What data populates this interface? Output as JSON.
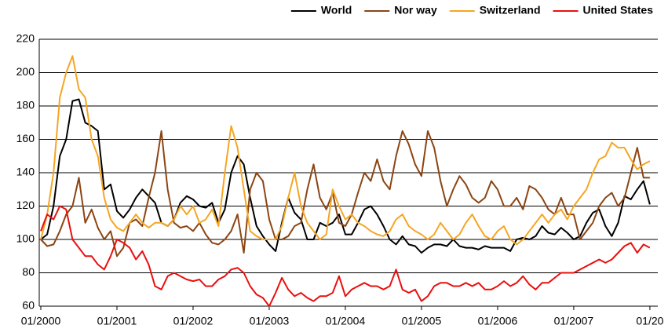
{
  "chart_data": {
    "type": "line",
    "x": [
      "2000-01",
      "2000-02",
      "2000-03",
      "2000-04",
      "2000-05",
      "2000-06",
      "2000-07",
      "2000-08",
      "2000-09",
      "2000-10",
      "2000-11",
      "2000-12",
      "2001-01",
      "2001-02",
      "2001-03",
      "2001-04",
      "2001-05",
      "2001-06",
      "2001-07",
      "2001-08",
      "2001-09",
      "2001-10",
      "2001-11",
      "2001-12",
      "2002-01",
      "2002-02",
      "2002-03",
      "2002-04",
      "2002-05",
      "2002-06",
      "2002-07",
      "2002-08",
      "2002-09",
      "2002-10",
      "2002-11",
      "2002-12",
      "2003-01",
      "2003-02",
      "2003-03",
      "2003-04",
      "2003-05",
      "2003-06",
      "2003-07",
      "2003-08",
      "2003-09",
      "2003-10",
      "2003-11",
      "2003-12",
      "2004-01",
      "2004-02",
      "2004-03",
      "2004-04",
      "2004-05",
      "2004-06",
      "2004-07",
      "2004-08",
      "2004-09",
      "2004-10",
      "2004-11",
      "2004-12",
      "2005-01",
      "2005-02",
      "2005-03",
      "2005-04",
      "2005-05",
      "2005-06",
      "2005-07",
      "2005-08",
      "2005-09",
      "2005-10",
      "2005-11",
      "2005-12",
      "2006-01",
      "2006-02",
      "2006-03",
      "2006-04",
      "2006-05",
      "2006-06",
      "2006-07",
      "2006-08",
      "2006-09",
      "2006-10",
      "2006-11",
      "2006-12",
      "2007-01",
      "2007-02",
      "2007-03",
      "2007-04",
      "2007-05",
      "2007-06",
      "2007-07",
      "2007-08",
      "2007-09",
      "2007-10",
      "2007-11",
      "2007-12",
      "2008-01"
    ],
    "series": [
      {
        "name": "World",
        "color": "#000000",
        "values": [
          100,
          103,
          120,
          150,
          160,
          183,
          184,
          170,
          168,
          165,
          130,
          133,
          117,
          113,
          118,
          125,
          130,
          126,
          122,
          110,
          108,
          112,
          122,
          126,
          124,
          120,
          119,
          122,
          110,
          118,
          140,
          150,
          145,
          125,
          108,
          102,
          97,
          93,
          110,
          125,
          116,
          112,
          100,
          100,
          110,
          108,
          110,
          115,
          103,
          103,
          110,
          118,
          120,
          115,
          108,
          100,
          97,
          102,
          97,
          96,
          92,
          95,
          97,
          97,
          96,
          100,
          96,
          95,
          95,
          94,
          96,
          95,
          95,
          95,
          93,
          100,
          101,
          100,
          102,
          108,
          104,
          103,
          107,
          104,
          100,
          102,
          110,
          116,
          118,
          108,
          102,
          110,
          126,
          124,
          130,
          135,
          121
        ]
      },
      {
        "name": "Nor way",
        "color": "#8b4513",
        "values": [
          100,
          96,
          97,
          105,
          115,
          120,
          137,
          110,
          118,
          107,
          100,
          105,
          90,
          95,
          110,
          112,
          108,
          125,
          140,
          165,
          130,
          110,
          107,
          108,
          105,
          110,
          103,
          98,
          97,
          100,
          105,
          115,
          92,
          130,
          140,
          135,
          112,
          100,
          100,
          102,
          108,
          110,
          130,
          145,
          125,
          118,
          128,
          110,
          108,
          115,
          128,
          140,
          135,
          148,
          135,
          130,
          150,
          165,
          157,
          145,
          138,
          165,
          155,
          135,
          120,
          130,
          138,
          133,
          125,
          122,
          125,
          135,
          130,
          120,
          120,
          125,
          118,
          132,
          130,
          125,
          118,
          115,
          125,
          115,
          115,
          100,
          105,
          110,
          120,
          125,
          128,
          120,
          125,
          140,
          155,
          137,
          137
        ]
      },
      {
        "name": "Switzerland",
        "color": "#f5a623",
        "values": [
          100,
          115,
          140,
          185,
          200,
          210,
          190,
          185,
          160,
          150,
          125,
          112,
          107,
          105,
          110,
          115,
          110,
          107,
          110,
          110,
          108,
          112,
          120,
          115,
          120,
          110,
          112,
          118,
          108,
          140,
          168,
          155,
          130,
          105,
          102,
          100,
          100,
          100,
          108,
          125,
          140,
          120,
          110,
          105,
          100,
          103,
          130,
          120,
          112,
          115,
          110,
          108,
          105,
          103,
          102,
          105,
          112,
          115,
          108,
          105,
          103,
          100,
          103,
          110,
          105,
          100,
          103,
          110,
          115,
          108,
          102,
          100,
          105,
          108,
          100,
          97,
          100,
          105,
          110,
          115,
          110,
          115,
          118,
          112,
          120,
          125,
          130,
          140,
          148,
          150,
          158,
          155,
          155,
          148,
          142,
          145,
          147
        ]
      },
      {
        "name": "United States",
        "color": "#e8100e",
        "values": [
          105,
          115,
          112,
          120,
          118,
          100,
          95,
          90,
          90,
          85,
          82,
          90,
          100,
          98,
          95,
          88,
          93,
          85,
          72,
          70,
          78,
          80,
          78,
          76,
          75,
          76,
          72,
          72,
          76,
          78,
          82,
          83,
          80,
          72,
          67,
          65,
          60,
          68,
          77,
          70,
          66,
          68,
          65,
          63,
          66,
          66,
          68,
          78,
          66,
          70,
          72,
          74,
          72,
          72,
          70,
          72,
          82,
          70,
          68,
          70,
          63,
          66,
          72,
          74,
          74,
          72,
          72,
          74,
          72,
          74,
          70,
          70,
          72,
          75,
          72,
          74,
          78,
          73,
          70,
          74,
          74,
          77,
          80,
          80,
          80,
          82,
          84,
          86,
          88,
          86,
          88,
          92,
          96,
          98,
          92,
          97,
          95
        ]
      }
    ],
    "xlim": [
      "2000-01",
      "2008-02"
    ],
    "xticks": [
      {
        "value": "2000-01",
        "label": "01/2000"
      },
      {
        "value": "2001-01",
        "label": "01/2001"
      },
      {
        "value": "2002-01",
        "label": "01/2002"
      },
      {
        "value": "2003-01",
        "label": "01/2003"
      },
      {
        "value": "2004-01",
        "label": "01/2004"
      },
      {
        "value": "2005-01",
        "label": "01/2005"
      },
      {
        "value": "2006-01",
        "label": "01/2006"
      },
      {
        "value": "2007-01",
        "label": "01/2007"
      },
      {
        "value": "2008-01",
        "label": "01/20"
      }
    ],
    "ylim": [
      60,
      220
    ],
    "yticks": [
      60,
      80,
      100,
      120,
      140,
      160,
      180,
      200,
      220
    ],
    "grid": true,
    "legend": "top-right"
  }
}
